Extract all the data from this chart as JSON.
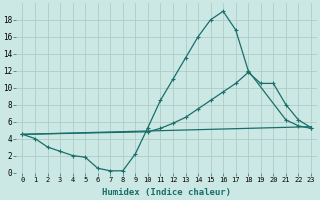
{
  "xlabel": "Humidex (Indice chaleur)",
  "bg_color": "#cce8e4",
  "line_color": "#1a6e6a",
  "grid_color": "#a8c8c4",
  "xlim": [
    -0.5,
    23.5
  ],
  "ylim": [
    0,
    20
  ],
  "xticks": [
    0,
    1,
    2,
    3,
    4,
    5,
    6,
    7,
    8,
    9,
    10,
    11,
    12,
    13,
    14,
    15,
    16,
    17,
    18,
    19,
    20,
    21,
    22,
    23
  ],
  "yticks": [
    0,
    2,
    4,
    6,
    8,
    10,
    12,
    14,
    16,
    18
  ],
  "line1_x": [
    0,
    1,
    2,
    3,
    4,
    5,
    6,
    7,
    8,
    9,
    10,
    11,
    12,
    13,
    14,
    15,
    16,
    17,
    18,
    19,
    20,
    21,
    22,
    23
  ],
  "line1_y": [
    4.5,
    4.0,
    3.0,
    2.5,
    2.0,
    1.8,
    0.5,
    0.2,
    0.2,
    2.2,
    5.3,
    8.5,
    11.0,
    13.5,
    16.0,
    18.0,
    19.0,
    16.8,
    12.0,
    null,
    null,
    null,
    null,
    null
  ],
  "line2_x": [
    0,
    1,
    2,
    3,
    4,
    5,
    6,
    7,
    8,
    9,
    10,
    11,
    12,
    13,
    14,
    15,
    16,
    17,
    18,
    19,
    20,
    21,
    22,
    23
  ],
  "line2_y": [
    4.5,
    null,
    null,
    null,
    null,
    null,
    null,
    null,
    null,
    null,
    4.8,
    5.2,
    5.8,
    6.5,
    7.5,
    8.5,
    9.5,
    10.5,
    11.8,
    10.5,
    10.5,
    8.0,
    6.2,
    5.3
  ],
  "line3_x": [
    0,
    1,
    2,
    3,
    4,
    5,
    6,
    7,
    8,
    9,
    10,
    11,
    12,
    13,
    14,
    15,
    16,
    17,
    18,
    19,
    20,
    21,
    22,
    23
  ],
  "line3_y": [
    4.5,
    4.0,
    3.5,
    3.0,
    3.2,
    3.5,
    3.8,
    4.0,
    4.2,
    4.3,
    4.5,
    4.7,
    4.9,
    5.1,
    5.3,
    5.5,
    5.7,
    5.9,
    6.1,
    6.2,
    6.3,
    6.4,
    6.5,
    5.4
  ],
  "line_peak_x": [
    0,
    1,
    2,
    3,
    4,
    5,
    6,
    7,
    8,
    9,
    10,
    11,
    12,
    13,
    14,
    15,
    16,
    17,
    18,
    21,
    22,
    23
  ],
  "line_peak_y": [
    4.5,
    4.0,
    3.0,
    2.5,
    2.0,
    1.8,
    0.5,
    0.2,
    0.2,
    2.2,
    5.3,
    8.5,
    11.0,
    13.5,
    16.0,
    18.0,
    19.0,
    16.8,
    12.0,
    6.2,
    5.5,
    5.2
  ]
}
